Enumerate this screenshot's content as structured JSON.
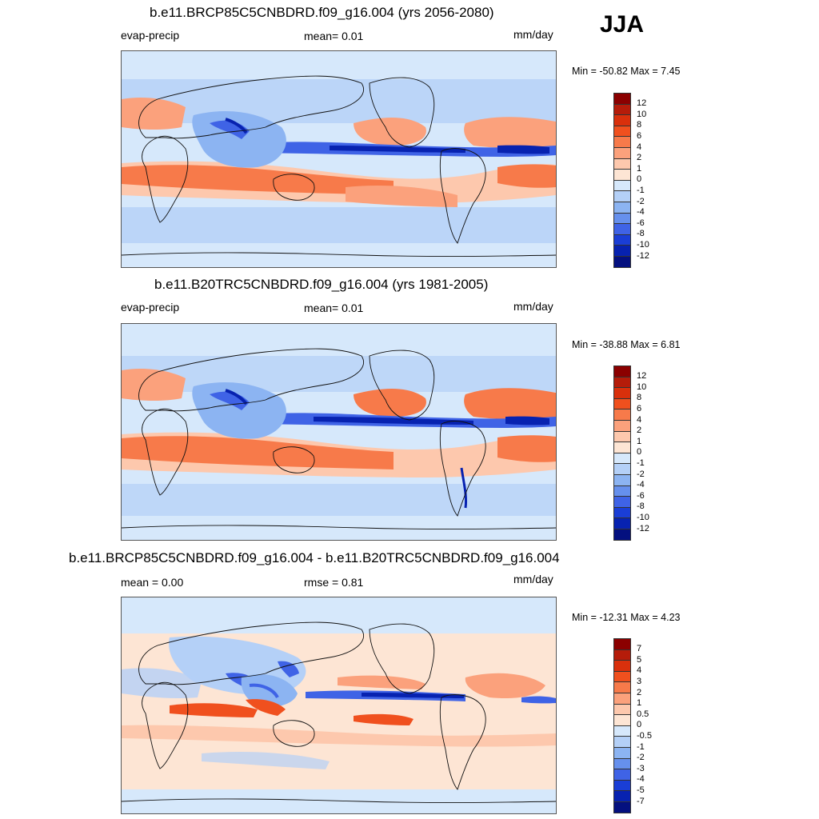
{
  "season": "JJA",
  "panels": [
    {
      "title": "b.e11.BRCP85C5CNBDRD.f09_g16.004 (yrs 2056-2080)",
      "left_label": "evap-precip",
      "center_label": "mean=   0.01",
      "units": "mm/day",
      "minmax": "Min = -50.82 Max =    7.45"
    },
    {
      "title": "b.e11.B20TRC5CNBDRD.f09_g16.004 (yrs 1981-2005)",
      "left_label": "evap-precip",
      "center_label": "mean=   0.01",
      "units": "mm/day",
      "minmax": "Min = -38.88 Max =    6.81"
    },
    {
      "title": "b.e11.BRCP85C5CNBDRD.f09_g16.004 - b.e11.B20TRC5CNBDRD.f09_g16.004",
      "left_label": "mean =   0.00",
      "center_label": "rmse =   0.81",
      "units": "mm/day",
      "minmax": "Min = -12.31 Max =    4.23"
    }
  ],
  "colorbars": {
    "abs": {
      "labels": [
        "12",
        "10",
        "8",
        "6",
        "4",
        "2",
        "1",
        "0",
        "-1",
        "-2",
        "-4",
        "-6",
        "-8",
        "-10",
        "-12"
      ],
      "colors": [
        "#8b0000",
        "#b51c0a",
        "#d9300c",
        "#f0501e",
        "#f77a4a",
        "#fba17c",
        "#fdc8ad",
        "#fde5d4",
        "#d6e8fb",
        "#b4d0f7",
        "#8cb4f2",
        "#6690ed",
        "#3f63e6",
        "#1a3ed6",
        "#0722b0",
        "#04107f"
      ]
    },
    "diff": {
      "labels": [
        "7",
        "5",
        "4",
        "3",
        "2",
        "1",
        "0.5",
        "0",
        "-0.5",
        "-1",
        "-2",
        "-3",
        "-4",
        "-5",
        "-7"
      ],
      "colors": [
        "#8b0000",
        "#b51c0a",
        "#d9300c",
        "#f0501e",
        "#f77a4a",
        "#fba17c",
        "#fdc8ad",
        "#fde5d4",
        "#d6e8fb",
        "#b4d0f7",
        "#8cb4f2",
        "#6690ed",
        "#3f63e6",
        "#1a3ed6",
        "#0722b0",
        "#04107f"
      ]
    }
  },
  "palette": {
    "ocean_neutral": "#d6e8fb",
    "land_neutral": "#fde5d4",
    "pos_light": "#fdc8ad",
    "pos_mid": "#fba17c",
    "pos_strong": "#f07040",
    "neg_light": "#b4d0f7",
    "neg_mid": "#8cb4f2",
    "neg_strong": "#3f63e6",
    "neg_darkest": "#0722b0"
  }
}
